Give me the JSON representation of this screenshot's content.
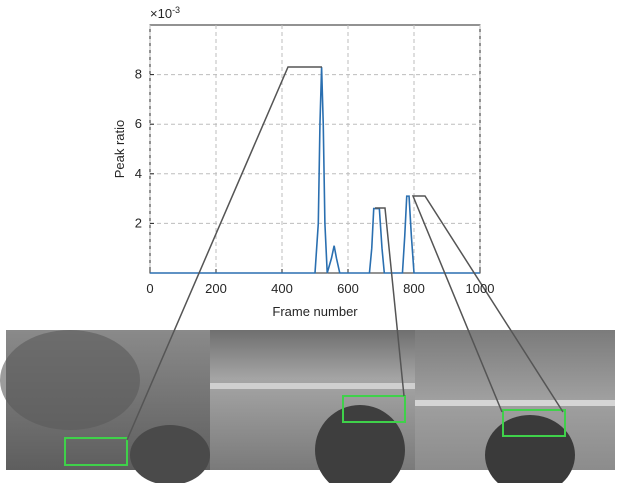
{
  "chart_data": {
    "type": "line",
    "x_label": "Frame number",
    "y_label": "Peak ratio",
    "y_multiplier_base": "×10",
    "y_multiplier_exp": "-3",
    "x": [
      0,
      500,
      510,
      515,
      520,
      525,
      530,
      537,
      550,
      558,
      565,
      575,
      665,
      672,
      678,
      695,
      703,
      710,
      765,
      772,
      778,
      785,
      792,
      800,
      1000
    ],
    "series": [
      {
        "color": "#2a6fb0",
        "values": [
          0,
          0,
          2,
          6,
          8.3,
          6,
          2,
          0,
          0.6,
          1.1,
          0.6,
          0,
          0,
          1,
          2.6,
          2.6,
          1,
          0,
          0,
          1.5,
          3.1,
          3.1,
          1.5,
          0,
          0
        ]
      }
    ],
    "xlim": [
      0,
      1000
    ],
    "xticks": [
      0,
      200,
      400,
      600,
      800,
      1000
    ],
    "ylim": [
      0,
      10
    ],
    "yticks": [
      2,
      4,
      6,
      8
    ],
    "grid": true
  }
}
